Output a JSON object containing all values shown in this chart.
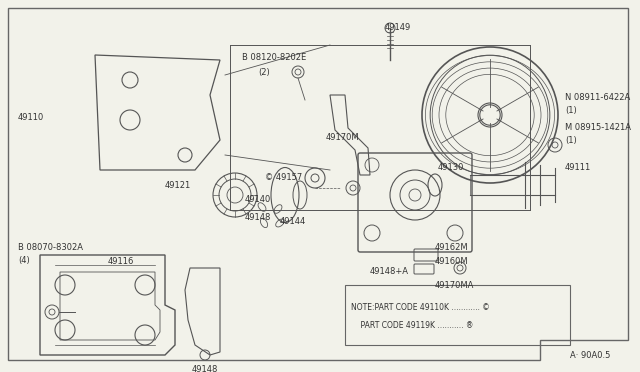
{
  "bg_color": "#f2f2ea",
  "line_color": "#555555",
  "text_color": "#333333",
  "fig_w": 6.4,
  "fig_h": 3.72,
  "note_text1": "NOTE:PART CODE 49110K ............ ©",
  "note_text2": "    PART CODE 49119K ........... ®",
  "footer": "A· 90A0.5"
}
